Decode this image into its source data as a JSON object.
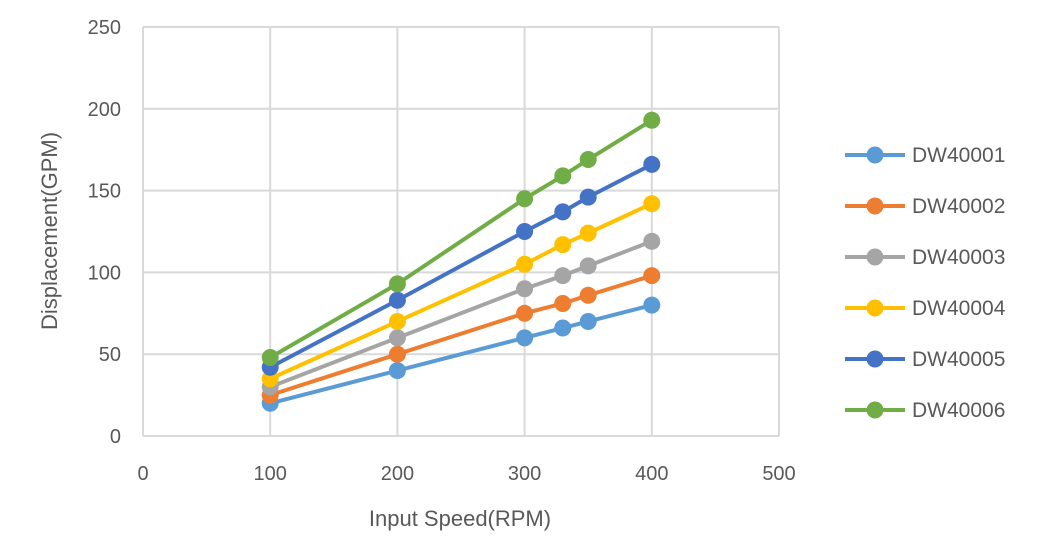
{
  "chart_data": {
    "type": "scatter",
    "title": "",
    "xlabel": "Input Speed(RPM)",
    "ylabel": "Displacement(GPM)",
    "xlim": [
      0,
      500
    ],
    "ylim": [
      0,
      250
    ],
    "xticks": [
      0,
      100,
      200,
      300,
      400,
      500
    ],
    "yticks": [
      0,
      50,
      100,
      150,
      200,
      250
    ],
    "grid": true,
    "legend_position": "right",
    "markers": true,
    "lines": true,
    "x": [
      100,
      200,
      300,
      330,
      350,
      400
    ],
    "series": [
      {
        "name": "DW40001",
        "color": "#5B9BD5",
        "y": [
          20,
          40,
          60,
          66,
          70,
          80
        ]
      },
      {
        "name": "DW40002",
        "color": "#ED7D31",
        "y": [
          25,
          50,
          75,
          81,
          86,
          98
        ]
      },
      {
        "name": "DW40003",
        "color": "#A5A5A5",
        "y": [
          30,
          60,
          90,
          98,
          104,
          119
        ]
      },
      {
        "name": "DW40004",
        "color": "#FFC000",
        "y": [
          35,
          70,
          105,
          117,
          124,
          142
        ]
      },
      {
        "name": "DW40005",
        "color": "#4472C4",
        "y": [
          42,
          83,
          125,
          137,
          146,
          166
        ]
      },
      {
        "name": "DW40006",
        "color": "#70AD47",
        "y": [
          48,
          93,
          145,
          159,
          169,
          193
        ]
      }
    ]
  }
}
